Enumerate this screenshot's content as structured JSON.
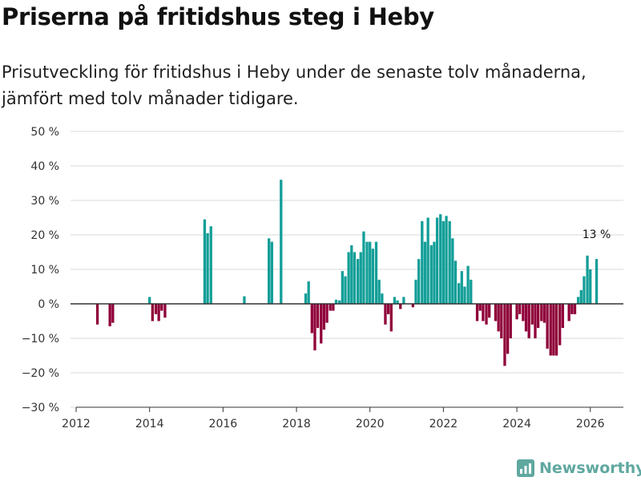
{
  "title": "Priserna på fritidshus steg i Heby",
  "subtitle": "Prisutveckling för fritidshus i Heby under de senaste tolv månaderna, jämfört med tolv månader tidigare.",
  "brand": {
    "name": "Newsworthy",
    "color": "#5fa8a0",
    "icon": "newsworthy-logo-icon"
  },
  "colors": {
    "positive": "#139e98",
    "negative": "#8f0039",
    "grid": "#d9d9d9",
    "zero_line": "#333333"
  },
  "chart_data": {
    "type": "bar",
    "title": "Priserna på fritidshus steg i Heby",
    "xlabel": "",
    "ylabel": "",
    "xlim": [
      2012.0,
      2026.9
    ],
    "ylim": [
      -30,
      50
    ],
    "y_ticks": [
      50,
      40,
      30,
      20,
      10,
      0,
      -10,
      -20,
      -30
    ],
    "y_tick_labels": [
      "50 %",
      "40 %",
      "30 %",
      "20 %",
      "10 %",
      "0 %",
      "−10 %",
      "−20 %",
      "−30 %"
    ],
    "x_ticks": [
      2012,
      2014,
      2016,
      2018,
      2020,
      2022,
      2024,
      2026
    ],
    "x_tick_labels": [
      "2012",
      "2014",
      "2016",
      "2018",
      "2020",
      "2022",
      "2024",
      "2026"
    ],
    "grid": true,
    "annotation": {
      "text": "13 %",
      "x": 2026.17,
      "y": 13
    },
    "series": [
      {
        "name": "Prisutveckling (%)",
        "points": [
          [
            2012.58,
            -6
          ],
          [
            2012.92,
            -6.5
          ],
          [
            2013.0,
            -5.5
          ],
          [
            2014.0,
            2
          ],
          [
            2014.08,
            -5
          ],
          [
            2014.17,
            -3
          ],
          [
            2014.25,
            -5
          ],
          [
            2014.33,
            -2
          ],
          [
            2014.42,
            -4
          ],
          [
            2015.5,
            24.5
          ],
          [
            2015.58,
            20.5
          ],
          [
            2015.67,
            22.5
          ],
          [
            2016.58,
            2.2
          ],
          [
            2017.25,
            19
          ],
          [
            2017.33,
            18
          ],
          [
            2017.58,
            36
          ],
          [
            2018.25,
            3
          ],
          [
            2018.33,
            6.5
          ],
          [
            2018.42,
            -8.5
          ],
          [
            2018.5,
            -13.5
          ],
          [
            2018.58,
            -7
          ],
          [
            2018.67,
            -11.5
          ],
          [
            2018.75,
            -7.5
          ],
          [
            2018.83,
            -5.5
          ],
          [
            2018.92,
            -2
          ],
          [
            2019.0,
            -2
          ],
          [
            2019.08,
            1.2
          ],
          [
            2019.17,
            1
          ],
          [
            2019.25,
            9.5
          ],
          [
            2019.33,
            8
          ],
          [
            2019.42,
            15
          ],
          [
            2019.5,
            17
          ],
          [
            2019.58,
            15
          ],
          [
            2019.67,
            13
          ],
          [
            2019.75,
            15
          ],
          [
            2019.83,
            21
          ],
          [
            2019.92,
            18
          ],
          [
            2020.0,
            18
          ],
          [
            2020.08,
            16
          ],
          [
            2020.17,
            18
          ],
          [
            2020.25,
            7
          ],
          [
            2020.33,
            3
          ],
          [
            2020.42,
            -6
          ],
          [
            2020.5,
            -3
          ],
          [
            2020.58,
            -8
          ],
          [
            2020.67,
            2
          ],
          [
            2020.75,
            1
          ],
          [
            2020.83,
            -1.5
          ],
          [
            2020.92,
            2
          ],
          [
            2021.17,
            -1
          ],
          [
            2021.25,
            7
          ],
          [
            2021.33,
            13
          ],
          [
            2021.42,
            24
          ],
          [
            2021.5,
            18
          ],
          [
            2021.58,
            25
          ],
          [
            2021.67,
            17
          ],
          [
            2021.75,
            18
          ],
          [
            2021.83,
            25
          ],
          [
            2021.92,
            26
          ],
          [
            2022.0,
            24
          ],
          [
            2022.08,
            25.5
          ],
          [
            2022.17,
            24
          ],
          [
            2022.25,
            19
          ],
          [
            2022.33,
            12.5
          ],
          [
            2022.42,
            6
          ],
          [
            2022.5,
            9.5
          ],
          [
            2022.58,
            5
          ],
          [
            2022.67,
            11
          ],
          [
            2022.75,
            7
          ],
          [
            2022.92,
            -5
          ],
          [
            2023.0,
            -2
          ],
          [
            2023.08,
            -5
          ],
          [
            2023.17,
            -6
          ],
          [
            2023.25,
            -4
          ],
          [
            2023.42,
            -5
          ],
          [
            2023.5,
            -8
          ],
          [
            2023.58,
            -10
          ],
          [
            2023.67,
            -18
          ],
          [
            2023.75,
            -14.5
          ],
          [
            2023.83,
            -10
          ],
          [
            2024.0,
            -4.5
          ],
          [
            2024.08,
            -3
          ],
          [
            2024.17,
            -5
          ],
          [
            2024.25,
            -8
          ],
          [
            2024.33,
            -10
          ],
          [
            2024.42,
            -6
          ],
          [
            2024.5,
            -10
          ],
          [
            2024.58,
            -7
          ],
          [
            2024.67,
            -5
          ],
          [
            2024.75,
            -5.5
          ],
          [
            2024.83,
            -13
          ],
          [
            2024.92,
            -15
          ],
          [
            2025.0,
            -15
          ],
          [
            2025.08,
            -15
          ],
          [
            2025.17,
            -12
          ],
          [
            2025.25,
            -7
          ],
          [
            2025.42,
            -5
          ],
          [
            2025.5,
            -3
          ],
          [
            2025.58,
            -3
          ],
          [
            2025.67,
            2
          ],
          [
            2025.75,
            4
          ],
          [
            2025.83,
            8
          ],
          [
            2025.92,
            14
          ],
          [
            2026.0,
            10
          ],
          [
            2026.17,
            13
          ]
        ]
      }
    ]
  }
}
